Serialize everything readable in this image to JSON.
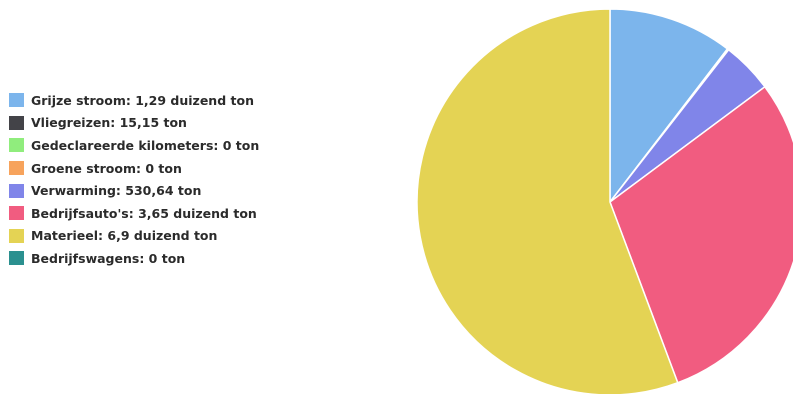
{
  "chart_data": {
    "type": "pie",
    "title": "",
    "legend_position": "left",
    "slices": [
      {
        "label": "Grijze stroom: 1,29 duizend ton",
        "value": 1290,
        "color": "#7cb5ec"
      },
      {
        "label": "Vliegreizen: 15,15 ton",
        "value": 15.15,
        "color": "#434348"
      },
      {
        "label": "Gedeclareerde kilometers: 0 ton",
        "value": 0,
        "color": "#90ed7d"
      },
      {
        "label": "Groene stroom: 0 ton",
        "value": 0,
        "color": "#f7a35c"
      },
      {
        "label": "Verwarming: 530,64 ton",
        "value": 530.64,
        "color": "#8085e9"
      },
      {
        "label": "Bedrijfsauto's: 3,65 duizend ton",
        "value": 3650,
        "color": "#f15c80"
      },
      {
        "label": "Materieel: 6,9 duizend ton",
        "value": 6900,
        "color": "#e4d354"
      },
      {
        "label": "Bedrijfswagens: 0 ton",
        "value": 0,
        "color": "#2b908f"
      }
    ]
  }
}
